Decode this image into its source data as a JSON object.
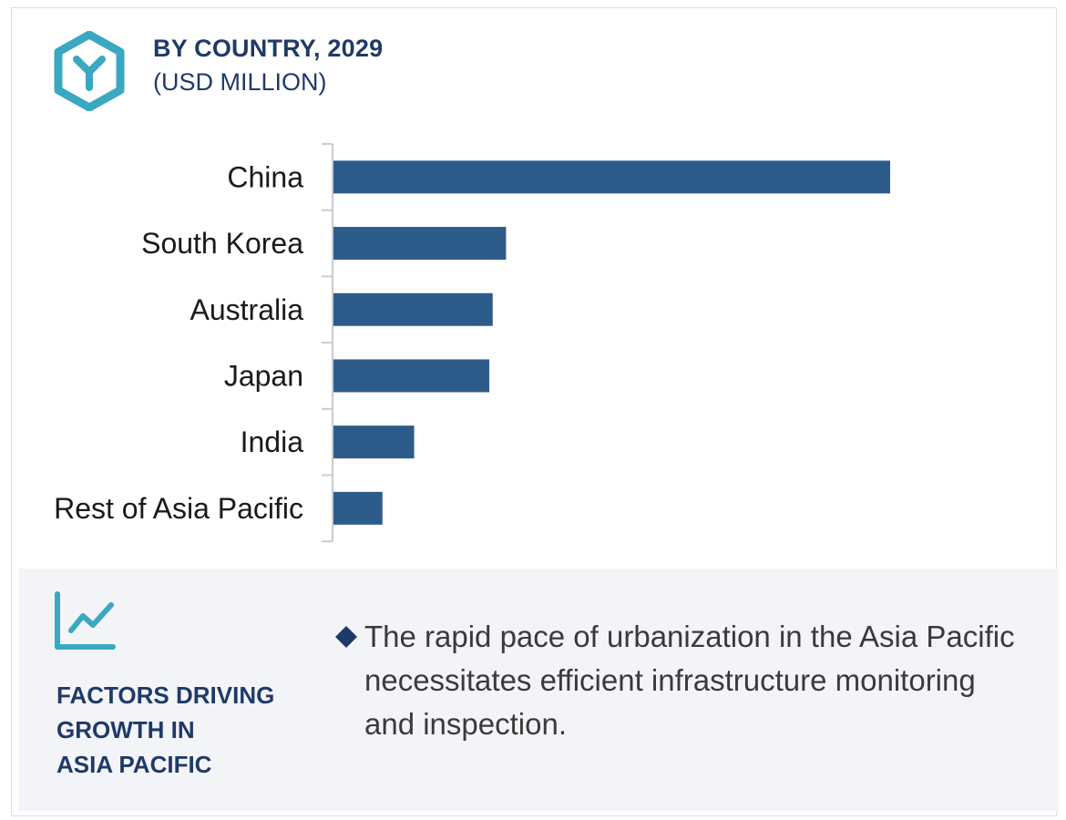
{
  "header": {
    "title": "BY COUNTRY, 2029",
    "subtitle": "(USD MILLION)",
    "icon": "hexagon-y-logo-icon"
  },
  "colors": {
    "bar": "#2e5c8a",
    "heading": "#1f3a68",
    "icon_teal": "#3aa8c1",
    "panel_bg": "#f3f4f8"
  },
  "chart_data": {
    "type": "bar",
    "orientation": "horizontal",
    "title": "BY COUNTRY, 2029",
    "subtitle": "(USD MILLION)",
    "categories": [
      "China",
      "South Korea",
      "Australia",
      "Japan",
      "India",
      "Rest of Asia Pacific"
    ],
    "values": [
      100,
      31,
      28.6,
      28,
      14.5,
      8.8
    ],
    "xlim": [
      0,
      100
    ],
    "grid": false,
    "legend": "none",
    "value_axis_labels": false
  },
  "factors": {
    "icon": "trend-line-chart-icon",
    "heading_lines": [
      "FACTORS DRIVING",
      "GROWTH IN",
      "ASIA PACIFIC"
    ],
    "bullet_icon": "diamond-bullet-icon",
    "text": "The rapid pace of urbanization in the Asia Pacific necessitates efficient infrastructure monitoring and inspection."
  }
}
